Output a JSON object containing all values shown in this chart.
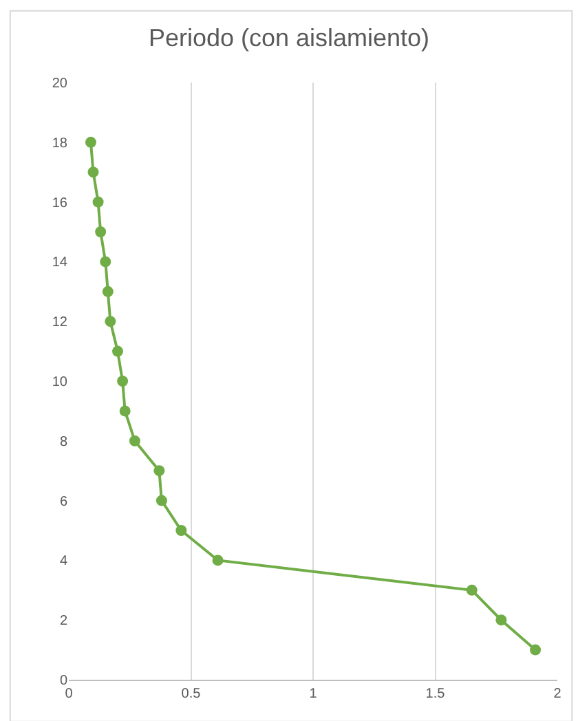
{
  "chart_data": {
    "type": "line",
    "title": "Periodo (con aislamiento)",
    "x": [
      1.91,
      1.77,
      1.65,
      0.61,
      0.46,
      0.38,
      0.37,
      0.27,
      0.23,
      0.22,
      0.2,
      0.17,
      0.16,
      0.15,
      0.13,
      0.12,
      0.1,
      0.09
    ],
    "series": [
      {
        "color": "#70ad47",
        "values": [
          1,
          2,
          3,
          4,
          5,
          6,
          7,
          8,
          9,
          10,
          11,
          12,
          13,
          14,
          15,
          16,
          17,
          18
        ]
      }
    ],
    "xlim": [
      0,
      2
    ],
    "xticks": [
      0,
      0.5,
      1,
      1.5,
      2
    ],
    "ylim": [
      0,
      20
    ],
    "yticks": [
      0,
      2,
      4,
      6,
      8,
      10,
      12,
      14,
      16,
      18,
      20
    ],
    "grid": "x",
    "marker": "circle",
    "line_style": "solid",
    "legend": false
  }
}
